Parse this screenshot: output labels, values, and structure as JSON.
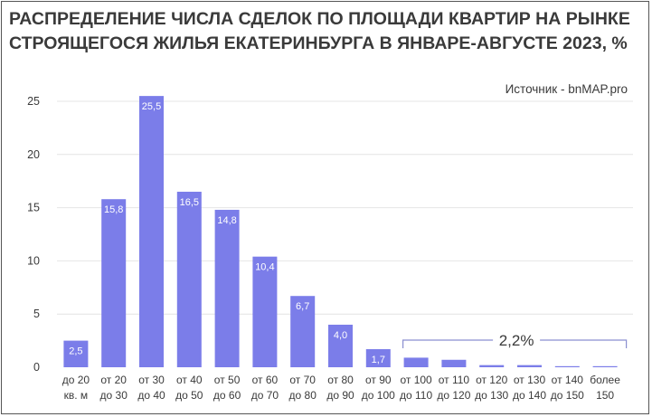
{
  "title_lines": [
    "РАСПРЕДЕЛЕНИЕ ЧИСЛА СДЕЛОК ПО ПЛОЩАДИ КВАРТИР НА РЫНКЕ",
    "СТРОЯЩЕГОСЯ ЖИЛЬЯ ЕКАТЕРИНБУРГА В ЯНВАРЕ-АВГУСТЕ 2023, %"
  ],
  "source": "Источник - bnMAP.pro",
  "colors": {
    "bar": "#7b7de9",
    "text": "#3a3a3a",
    "grid": "#e4e4e4",
    "bracket": "#8a8fd0"
  },
  "chart_data": {
    "type": "bar",
    "title": "РАСПРЕДЕЛЕНИЕ ЧИСЛА СДЕЛОК ПО ПЛОЩАДИ КВАРТИР НА РЫНКЕ СТРОЯЩЕГОСЯ ЖИЛЬЯ ЕКАТЕРИНБУРГА В ЯНВАРЕ-АВГУСТЕ 2023, %",
    "xlabel": "",
    "ylabel": "",
    "ylim": [
      0,
      25
    ],
    "yticks": [
      0,
      5,
      10,
      15,
      20,
      25
    ],
    "grid": true,
    "categories": [
      [
        "до 20",
        "кв. м"
      ],
      [
        "от 20",
        "до 30"
      ],
      [
        "от 30",
        "до 40"
      ],
      [
        "от 40",
        "до 50"
      ],
      [
        "от 50",
        "до 60"
      ],
      [
        "от 60",
        "до 70"
      ],
      [
        "от 70",
        "до 80"
      ],
      [
        "от 80",
        "до 90"
      ],
      [
        "от 90",
        "до 100"
      ],
      [
        "от 100",
        "до 110"
      ],
      [
        "от 110",
        "до 120"
      ],
      [
        "от 120",
        "до 130"
      ],
      [
        "от 130",
        "до 140"
      ],
      [
        "от 140",
        "до 150"
      ],
      [
        "более",
        "150"
      ]
    ],
    "values": [
      2.5,
      15.8,
      25.5,
      16.5,
      14.8,
      10.4,
      6.7,
      4.0,
      1.7,
      0.9,
      0.7,
      0.2,
      0.2,
      0.1,
      0.1
    ],
    "data_labels": [
      "2,5",
      "15,8",
      "25,5",
      "16,5",
      "14,8",
      "10,4",
      "6,7",
      "4,0",
      "1,7",
      "",
      "",
      "",
      "",
      "",
      ""
    ],
    "annotation": {
      "text": "2,2%",
      "from_category": 9,
      "to_category": 14
    }
  }
}
